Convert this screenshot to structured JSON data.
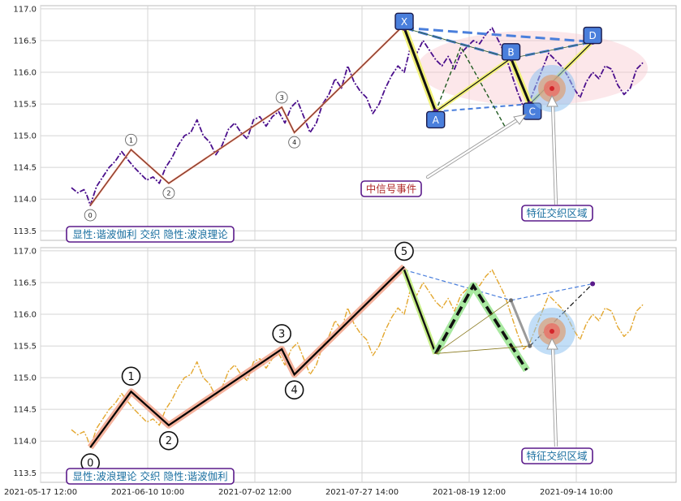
{
  "chart_data": [
    {
      "type": "line",
      "panel": "top",
      "ylim": [
        113.35,
        117.05
      ],
      "y_ticks": [
        "113.5",
        "114.0",
        "114.5",
        "115.0",
        "115.5",
        "116.0",
        "116.5",
        "117.0"
      ],
      "grid": true,
      "legend": "none",
      "series": [
        {
          "style": "dash-dot purple price line",
          "color": "#4b0f8c",
          "points": [
            [
              0,
              114.18
            ],
            [
              2,
              114.1
            ],
            [
              4,
              114.15
            ],
            [
              5,
              114.05
            ],
            [
              6,
              113.9
            ],
            [
              8,
              114.2
            ],
            [
              10,
              114.35
            ],
            [
              12,
              114.5
            ],
            [
              14,
              114.6
            ],
            [
              16,
              114.75
            ],
            [
              18,
              114.62
            ],
            [
              20,
              114.5
            ],
            [
              22,
              114.4
            ],
            [
              24,
              114.3
            ],
            [
              26,
              114.35
            ],
            [
              28,
              114.25
            ],
            [
              30,
              114.5
            ],
            [
              32,
              114.65
            ],
            [
              34,
              114.85
            ],
            [
              36,
              115.0
            ],
            [
              38,
              115.05
            ],
            [
              40,
              115.25
            ],
            [
              42,
              115.0
            ],
            [
              44,
              114.9
            ],
            [
              46,
              114.7
            ],
            [
              48,
              114.85
            ],
            [
              50,
              115.1
            ],
            [
              52,
              115.2
            ],
            [
              54,
              115.05
            ],
            [
              56,
              114.95
            ],
            [
              58,
              115.25
            ],
            [
              60,
              115.3
            ],
            [
              62,
              115.15
            ],
            [
              64,
              115.3
            ],
            [
              66,
              115.38
            ],
            [
              68,
              115.2
            ],
            [
              70,
              115.45
            ],
            [
              72,
              115.55
            ],
            [
              74,
              115.3
            ],
            [
              76,
              115.05
            ],
            [
              78,
              115.2
            ],
            [
              80,
              115.5
            ],
            [
              82,
              115.65
            ],
            [
              84,
              115.9
            ],
            [
              86,
              115.75
            ],
            [
              88,
              116.1
            ],
            [
              90,
              115.85
            ],
            [
              92,
              115.7
            ],
            [
              94,
              115.6
            ],
            [
              96,
              115.35
            ],
            [
              98,
              115.5
            ],
            [
              100,
              115.75
            ],
            [
              102,
              115.95
            ],
            [
              104,
              116.1
            ],
            [
              106,
              116.0
            ],
            [
              108,
              116.4
            ],
            [
              110,
              116.3
            ],
            [
              112,
              116.5
            ],
            [
              114,
              116.35
            ],
            [
              116,
              116.2
            ],
            [
              118,
              116.1
            ],
            [
              120,
              116.25
            ],
            [
              122,
              116.05
            ],
            [
              124,
              116.3
            ],
            [
              126,
              116.4
            ],
            [
              128,
              116.5
            ],
            [
              130,
              116.45
            ],
            [
              132,
              116.6
            ],
            [
              134,
              116.7
            ],
            [
              136,
              116.5
            ],
            [
              138,
              116.3
            ],
            [
              140,
              116.0
            ],
            [
              142,
              115.7
            ],
            [
              144,
              115.45
            ],
            [
              146,
              115.55
            ],
            [
              148,
              115.8
            ],
            [
              150,
              116.05
            ],
            [
              152,
              116.3
            ],
            [
              154,
              116.2
            ],
            [
              156,
              116.1
            ],
            [
              158,
              115.95
            ],
            [
              160,
              115.75
            ],
            [
              162,
              115.6
            ],
            [
              164,
              115.85
            ],
            [
              166,
              116.0
            ],
            [
              168,
              115.9
            ],
            [
              170,
              116.1
            ],
            [
              172,
              116.05
            ],
            [
              174,
              115.8
            ],
            [
              176,
              115.65
            ],
            [
              178,
              115.75
            ],
            [
              180,
              116.05
            ],
            [
              182,
              116.15
            ]
          ]
        },
        {
          "style": "trend line",
          "color": "#e8836a",
          "points": [
            [
              6,
              113.9
            ],
            [
              19,
              114.78
            ],
            [
              31,
              114.25
            ],
            [
              67,
              115.45
            ],
            [
              71,
              115.05
            ],
            [
              106,
              116.75
            ]
          ]
        }
      ],
      "wave_labels": [
        {
          "text": "0",
          "at": [
            6,
            113.9
          ]
        },
        {
          "text": "1",
          "at": [
            19,
            114.78
          ]
        },
        {
          "text": "2",
          "at": [
            31,
            114.25
          ]
        },
        {
          "text": "3",
          "at": [
            67,
            115.45
          ]
        },
        {
          "text": "4",
          "at": [
            71,
            115.05
          ]
        }
      ],
      "harmonic": {
        "labels": [
          "X",
          "A",
          "B",
          "C",
          "D"
        ],
        "X": [
          106,
          116.7
        ],
        "A": [
          116,
          115.38
        ],
        "B": [
          140,
          116.22
        ],
        "C": [
          146,
          115.5
        ],
        "D": [
          166,
          116.48
        ],
        "color": "#4a7fdc"
      },
      "annotations": [
        {
          "text": "中信号事件",
          "color": "#b02a2a"
        },
        {
          "text": "特征交织区域",
          "color": "#1a6fa0"
        },
        {
          "text": "显性:谐波伽利 交织 隐性:波浪理论",
          "color": "#1a6fa0"
        }
      ]
    },
    {
      "type": "line",
      "panel": "bottom",
      "ylim": [
        113.35,
        117.05
      ],
      "y_ticks": [
        "113.5",
        "114.0",
        "114.5",
        "115.0",
        "115.5",
        "116.0",
        "116.5",
        "117.0"
      ],
      "x_ticks": [
        "2021-05-17 12:00",
        "2021-06-10 10:00",
        "2021-07-02 12:00",
        "2021-07-27 14:00",
        "2021-08-19 12:00",
        "2021-09-14 10:00"
      ],
      "grid": true,
      "legend": "none",
      "series": [
        {
          "style": "dash-dot orange price line",
          "color": "#e3a72f",
          "points": [
            [
              0,
              114.18
            ],
            [
              2,
              114.1
            ],
            [
              4,
              114.15
            ],
            [
              5,
              114.05
            ],
            [
              6,
              113.9
            ],
            [
              8,
              114.2
            ],
            [
              10,
              114.35
            ],
            [
              12,
              114.5
            ],
            [
              14,
              114.6
            ],
            [
              16,
              114.75
            ],
            [
              18,
              114.62
            ],
            [
              20,
              114.5
            ],
            [
              22,
              114.4
            ],
            [
              24,
              114.3
            ],
            [
              26,
              114.35
            ],
            [
              28,
              114.25
            ],
            [
              30,
              114.5
            ],
            [
              32,
              114.65
            ],
            [
              34,
              114.85
            ],
            [
              36,
              115.0
            ],
            [
              38,
              115.05
            ],
            [
              40,
              115.25
            ],
            [
              42,
              115.0
            ],
            [
              44,
              114.9
            ],
            [
              46,
              114.7
            ],
            [
              48,
              114.85
            ],
            [
              50,
              115.1
            ],
            [
              52,
              115.2
            ],
            [
              54,
              115.05
            ],
            [
              56,
              114.95
            ],
            [
              58,
              115.25
            ],
            [
              60,
              115.3
            ],
            [
              62,
              115.15
            ],
            [
              64,
              115.3
            ],
            [
              66,
              115.38
            ],
            [
              68,
              115.2
            ],
            [
              70,
              115.45
            ],
            [
              72,
              115.55
            ],
            [
              74,
              115.3
            ],
            [
              76,
              115.05
            ],
            [
              78,
              115.2
            ],
            [
              80,
              115.5
            ],
            [
              82,
              115.65
            ],
            [
              84,
              115.9
            ],
            [
              86,
              115.75
            ],
            [
              88,
              116.1
            ],
            [
              90,
              115.85
            ],
            [
              92,
              115.7
            ],
            [
              94,
              115.6
            ],
            [
              96,
              115.35
            ],
            [
              98,
              115.5
            ],
            [
              100,
              115.75
            ],
            [
              102,
              115.95
            ],
            [
              104,
              116.1
            ],
            [
              106,
              116.0
            ],
            [
              108,
              116.4
            ],
            [
              110,
              116.3
            ],
            [
              112,
              116.5
            ],
            [
              114,
              116.35
            ],
            [
              116,
              116.2
            ],
            [
              118,
              116.1
            ],
            [
              120,
              116.25
            ],
            [
              122,
              116.05
            ],
            [
              124,
              116.3
            ],
            [
              126,
              116.4
            ],
            [
              128,
              116.5
            ],
            [
              130,
              116.45
            ],
            [
              132,
              116.6
            ],
            [
              134,
              116.7
            ],
            [
              136,
              116.5
            ],
            [
              138,
              116.3
            ],
            [
              140,
              116.0
            ],
            [
              142,
              115.7
            ],
            [
              144,
              115.45
            ],
            [
              146,
              115.55
            ],
            [
              148,
              115.8
            ],
            [
              150,
              116.05
            ],
            [
              152,
              116.3
            ],
            [
              154,
              116.2
            ],
            [
              156,
              116.1
            ],
            [
              158,
              115.95
            ],
            [
              160,
              115.75
            ],
            [
              162,
              115.6
            ],
            [
              164,
              115.85
            ],
            [
              166,
              116.0
            ],
            [
              168,
              115.9
            ],
            [
              170,
              116.1
            ],
            [
              172,
              116.05
            ],
            [
              174,
              115.8
            ],
            [
              176,
              115.65
            ],
            [
              178,
              115.75
            ],
            [
              180,
              116.05
            ],
            [
              182,
              116.15
            ]
          ]
        },
        {
          "style": "impulse wave (black)",
          "color": "#000000",
          "points": [
            [
              6,
              113.9
            ],
            [
              19,
              114.78
            ],
            [
              31,
              114.25
            ],
            [
              67,
              115.45
            ],
            [
              71,
              115.05
            ],
            [
              106,
              116.75
            ]
          ]
        }
      ],
      "wave_labels": [
        {
          "text": "0",
          "at": [
            6,
            113.9
          ]
        },
        {
          "text": "1",
          "at": [
            19,
            114.78
          ]
        },
        {
          "text": "2",
          "at": [
            31,
            114.25
          ]
        },
        {
          "text": "3",
          "at": [
            67,
            115.45
          ]
        },
        {
          "text": "4",
          "at": [
            71,
            115.05
          ]
        },
        {
          "text": "5",
          "at": [
            106,
            116.75
          ]
        }
      ],
      "annotations": [
        {
          "text": "特征交织区域",
          "color": "#1a6fa0"
        },
        {
          "text": "显性:波浪理论 交织 隐性:谐波伽利",
          "color": "#1a6fa0"
        }
      ]
    }
  ]
}
